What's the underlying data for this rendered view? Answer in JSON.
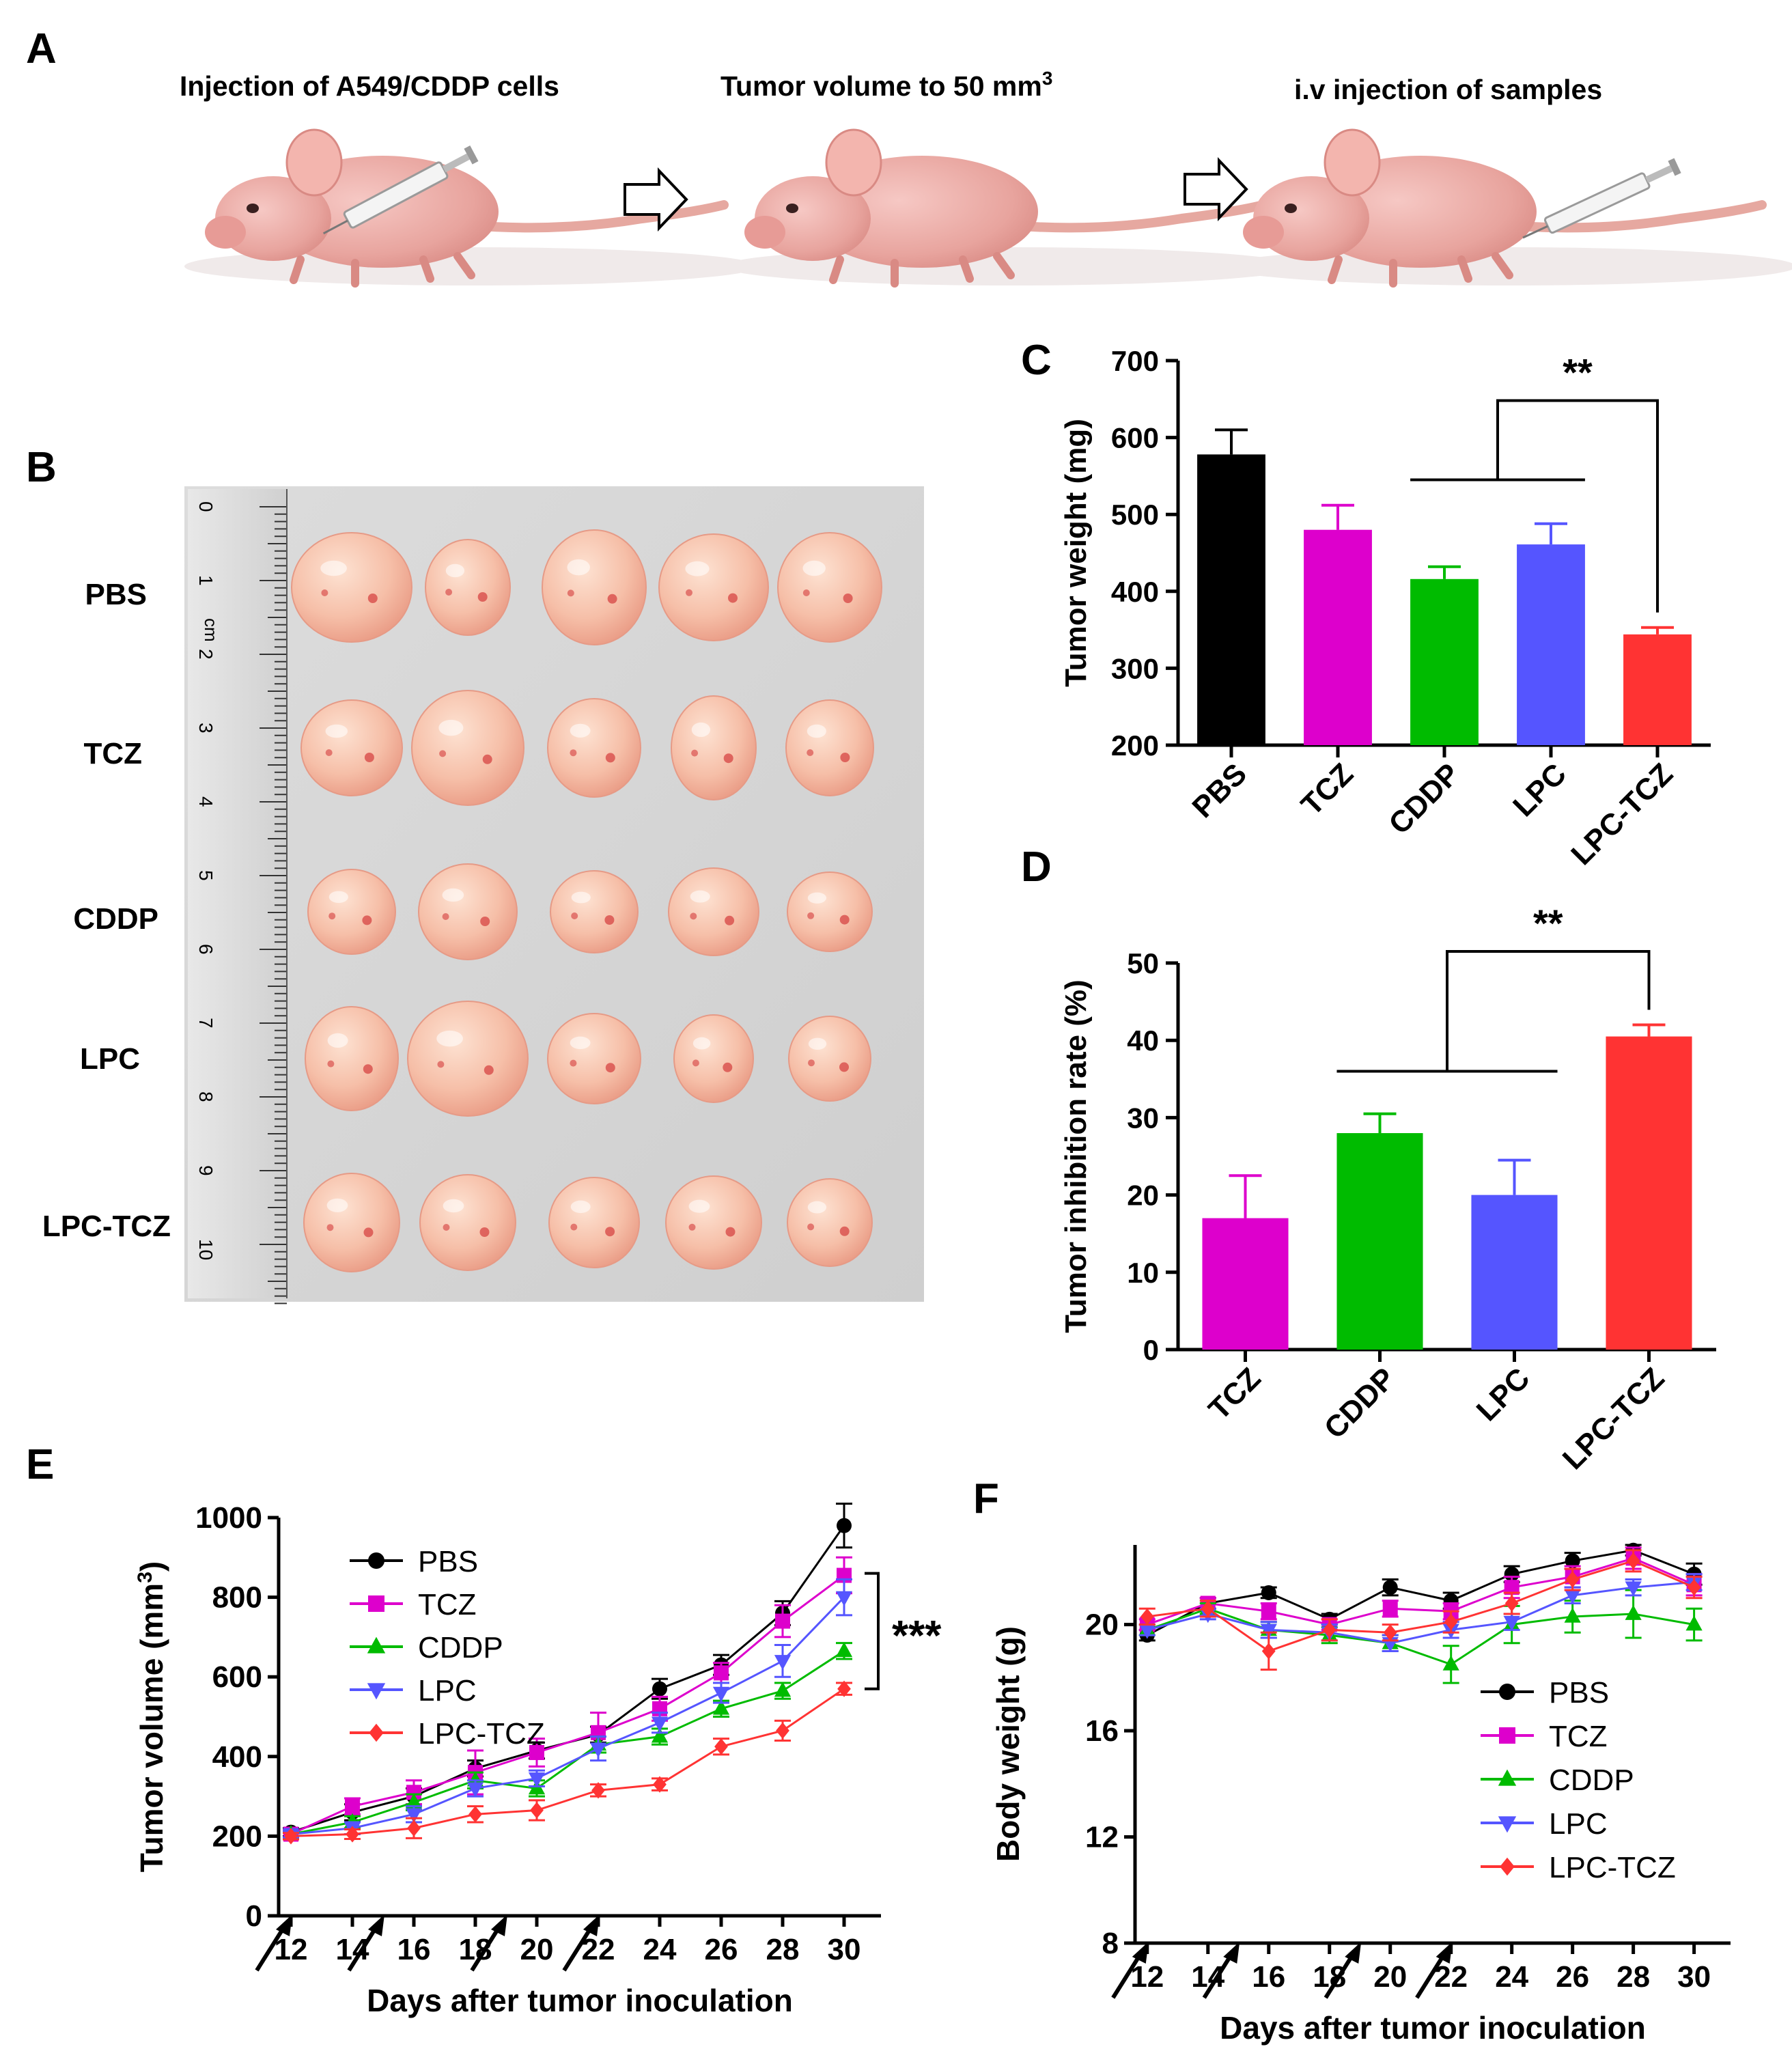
{
  "panels": {
    "A": {
      "label": "A",
      "steps": [
        {
          "label": "Injection of A549/CDDP cells"
        },
        {
          "label": "Tumor volume to 50 mm",
          "superscript": "3"
        },
        {
          "label": "i.v injection of samples"
        }
      ]
    },
    "B": {
      "label": "B",
      "rows": [
        "PBS",
        "TCZ",
        "CDDP",
        "LPC",
        "LPC-TCZ"
      ],
      "ruler_numbers": [
        "0",
        "1",
        "2",
        "3",
        "4",
        "5",
        "6",
        "7",
        "8",
        "9",
        "10"
      ],
      "ruler_unit": "cm"
    }
  },
  "chart_data": [
    {
      "panel": "C",
      "type": "bar",
      "ylabel": "Tumor weight (mg)",
      "categories": [
        "PBS",
        "TCZ",
        "CDDP",
        "LPC",
        "LPC-TCZ"
      ],
      "values": [
        578,
        480,
        416,
        461,
        344
      ],
      "errors": [
        32,
        32,
        16,
        27,
        9
      ],
      "colors": [
        "#000000",
        "#dd00cc",
        "#00bb00",
        "#5555ff",
        "#ff3333"
      ],
      "ylim": [
        200,
        700
      ],
      "yticks": [
        200,
        300,
        400,
        500,
        600,
        700
      ],
      "significance": "**"
    },
    {
      "panel": "D",
      "type": "bar",
      "ylabel": "Tumor inhibition rate (%)",
      "categories": [
        "TCZ",
        "CDDP",
        "LPC",
        "LPC-TCZ"
      ],
      "values": [
        17,
        28,
        20,
        40.5
      ],
      "errors": [
        5.5,
        2.5,
        4.5,
        1.5
      ],
      "colors": [
        "#dd00cc",
        "#00bb00",
        "#5555ff",
        "#ff3333"
      ],
      "ylim": [
        0,
        50
      ],
      "yticks": [
        0,
        10,
        20,
        30,
        40,
        50
      ],
      "significance": "**"
    },
    {
      "panel": "E",
      "type": "line",
      "xlabel": "Days after tumor inoculation",
      "ylabel": "Tumor volume (mm",
      "ylabel_sup": "3",
      "ylabel_end": ")",
      "x": [
        12,
        14,
        16,
        18,
        20,
        22,
        24,
        26,
        28,
        30
      ],
      "xticks": [
        12,
        14,
        16,
        18,
        20,
        22,
        24,
        26,
        28,
        30
      ],
      "ylim": [
        0,
        1000
      ],
      "yticks": [
        0,
        200,
        400,
        600,
        800,
        1000
      ],
      "injection_days": [
        12,
        15,
        19,
        22
      ],
      "significance": "***",
      "series": [
        {
          "name": "PBS",
          "marker": "circle",
          "color": "#000000",
          "values": [
            210,
            260,
            300,
            370,
            415,
            455,
            570,
            630,
            760,
            980
          ],
          "errors": [
            10,
            20,
            20,
            20,
            20,
            20,
            25,
            25,
            30,
            55
          ]
        },
        {
          "name": "TCZ",
          "marker": "square",
          "color": "#dd00cc",
          "values": [
            205,
            275,
            310,
            360,
            410,
            460,
            520,
            610,
            740,
            855
          ],
          "errors": [
            10,
            20,
            30,
            55,
            35,
            50,
            30,
            25,
            40,
            45
          ]
        },
        {
          "name": "CDDP",
          "marker": "triangle-up",
          "color": "#00bb00",
          "values": [
            205,
            235,
            285,
            340,
            320,
            430,
            450,
            520,
            565,
            665
          ],
          "errors": [
            8,
            15,
            20,
            20,
            20,
            20,
            20,
            20,
            20,
            20
          ]
        },
        {
          "name": "LPC",
          "marker": "triangle-down",
          "color": "#5555ff",
          "values": [
            205,
            220,
            255,
            320,
            345,
            420,
            485,
            560,
            640,
            800
          ],
          "errors": [
            8,
            15,
            20,
            20,
            20,
            30,
            25,
            25,
            40,
            45
          ]
        },
        {
          "name": "LPC-TCZ",
          "marker": "diamond",
          "color": "#ff3333",
          "values": [
            200,
            205,
            220,
            255,
            265,
            315,
            330,
            425,
            465,
            570
          ],
          "errors": [
            8,
            12,
            25,
            20,
            25,
            15,
            15,
            20,
            25,
            15
          ]
        }
      ]
    },
    {
      "panel": "F",
      "type": "line",
      "xlabel": "Days after tumor inoculation",
      "ylabel": "Body weight (g)",
      "x": [
        12,
        14,
        16,
        18,
        20,
        22,
        24,
        26,
        28,
        30
      ],
      "xticks": [
        12,
        14,
        16,
        18,
        20,
        22,
        24,
        26,
        28,
        30
      ],
      "ylim": [
        8,
        23
      ],
      "yticks": [
        8,
        12,
        16,
        20
      ],
      "injection_days": [
        12,
        15,
        19,
        22
      ],
      "series": [
        {
          "name": "PBS",
          "marker": "circle",
          "color": "#000000",
          "values": [
            19.6,
            20.8,
            21.2,
            20.2,
            21.4,
            20.9,
            21.9,
            22.4,
            22.8,
            21.9
          ],
          "errors": [
            0.2,
            0.2,
            0.2,
            0.2,
            0.3,
            0.3,
            0.3,
            0.3,
            0.2,
            0.4
          ]
        },
        {
          "name": "TCZ",
          "marker": "square",
          "color": "#dd00cc",
          "values": [
            20.0,
            20.8,
            20.5,
            20.0,
            20.6,
            20.5,
            21.4,
            21.8,
            22.5,
            21.5
          ],
          "errors": [
            0.2,
            0.2,
            0.3,
            0.2,
            0.3,
            0.3,
            0.4,
            0.4,
            0.4,
            0.4
          ]
        },
        {
          "name": "CDDP",
          "marker": "triangle-up",
          "color": "#00bb00",
          "values": [
            19.8,
            20.6,
            19.8,
            19.6,
            19.3,
            18.5,
            20.0,
            20.3,
            20.4,
            20.0
          ],
          "errors": [
            0.2,
            0.2,
            0.3,
            0.3,
            0.3,
            0.7,
            0.7,
            0.6,
            0.9,
            0.6
          ]
        },
        {
          "name": "LPC",
          "marker": "triangle-down",
          "color": "#5555ff",
          "values": [
            19.8,
            20.4,
            19.8,
            19.7,
            19.3,
            19.8,
            20.1,
            21.1,
            21.4,
            21.6
          ],
          "errors": [
            0.2,
            0.2,
            0.3,
            0.3,
            0.3,
            0.3,
            0.3,
            0.3,
            0.3,
            0.3
          ]
        },
        {
          "name": "LPC-TCZ",
          "marker": "diamond",
          "color": "#ff3333",
          "values": [
            20.3,
            20.6,
            19.0,
            19.8,
            19.7,
            20.1,
            20.8,
            21.7,
            22.4,
            21.4
          ],
          "errors": [
            0.3,
            0.3,
            0.7,
            0.4,
            0.3,
            0.4,
            0.4,
            0.4,
            0.4,
            0.4
          ]
        }
      ]
    }
  ]
}
